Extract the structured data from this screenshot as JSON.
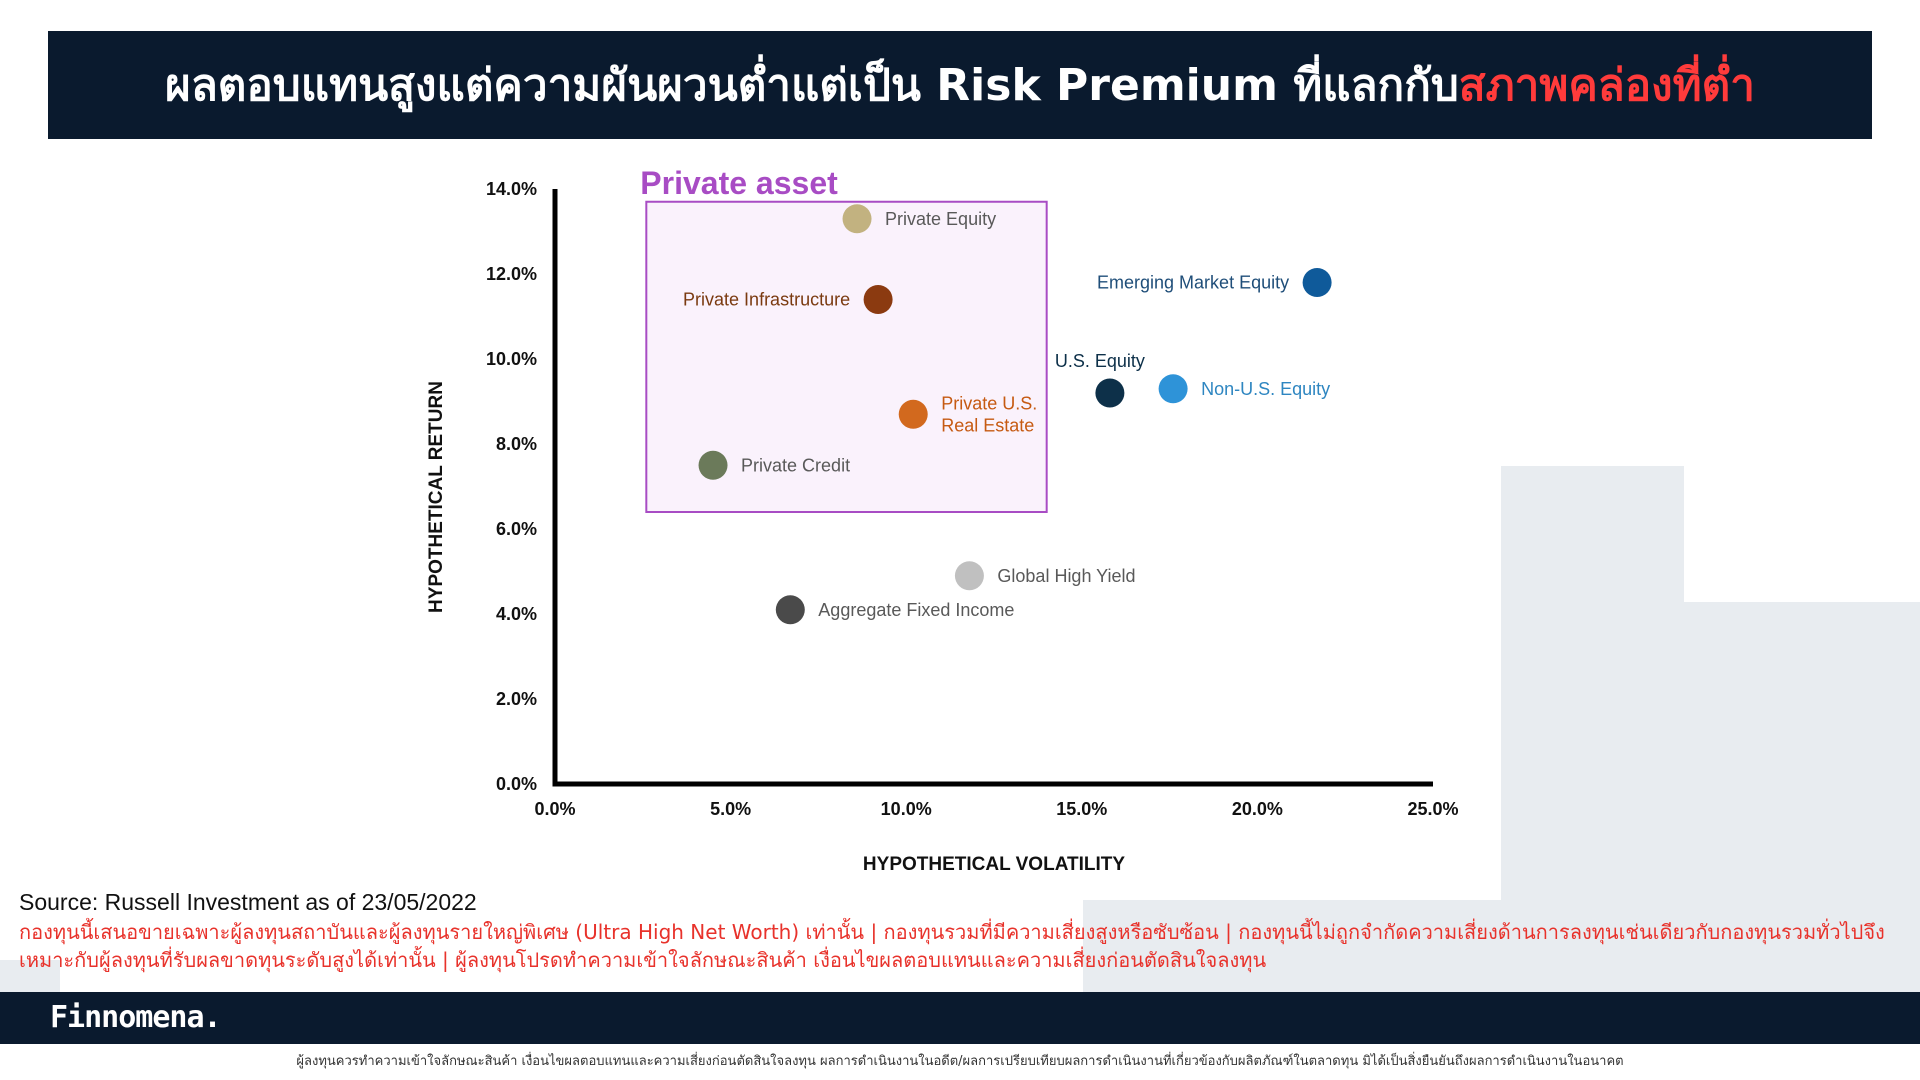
{
  "header": {
    "title_main": "ผลตอบแทนสูงแต่ความผันผวนต่ำแต่เป็น Risk Premium ที่แลกกับ",
    "title_highlight": "สภาพคล่องที่ต่ำ"
  },
  "chart_data": {
    "type": "scatter",
    "xlabel": "HYPOTHETICAL VOLATILITY",
    "ylabel": "HYPOTHETICAL RETURN",
    "xlim": [
      0,
      25
    ],
    "ylim": [
      0,
      14
    ],
    "x_ticks": [
      "0.0%",
      "5.0%",
      "10.0%",
      "15.0%",
      "20.0%",
      "25.0%"
    ],
    "y_ticks": [
      "0.0%",
      "2.0%",
      "4.0%",
      "6.0%",
      "8.0%",
      "10.0%",
      "12.0%",
      "14.0%"
    ],
    "grid": false,
    "group_box": {
      "label": "Private asset",
      "color": "#a84cc4",
      "x_range": [
        2.6,
        14.0
      ],
      "y_range": [
        6.4,
        13.7
      ]
    },
    "points": [
      {
        "name": "Private Equity",
        "x": 8.6,
        "y": 13.3,
        "color": "#c2b280",
        "label_lines": [
          "Private Equity"
        ],
        "label_color": "#595959",
        "label_pos": "right"
      },
      {
        "name": "Private Infrastructure",
        "x": 9.2,
        "y": 11.4,
        "color": "#8b3a10",
        "label_lines": [
          "Private Infrastructure"
        ],
        "label_color": "#7a3a10",
        "label_pos": "left"
      },
      {
        "name": "Private U.S. Real Estate",
        "x": 10.2,
        "y": 8.7,
        "color": "#d2691e",
        "label_lines": [
          "Private U.S.",
          "Real Estate"
        ],
        "label_color": "#c65a12",
        "label_pos": "right"
      },
      {
        "name": "Private Credit",
        "x": 4.5,
        "y": 7.5,
        "color": "#6b7a5a",
        "label_lines": [
          "Private Credit"
        ],
        "label_color": "#595959",
        "label_pos": "right"
      },
      {
        "name": "Emerging Market Equity",
        "x": 21.7,
        "y": 11.8,
        "color": "#0f5a9a",
        "label_lines": [
          "Emerging Market Equity"
        ],
        "label_color": "#1f4e79",
        "label_pos": "left"
      },
      {
        "name": "U.S. Equity",
        "x": 15.8,
        "y": 9.2,
        "color": "#0d3049",
        "label_lines": [
          "U.S. Equity"
        ],
        "label_color": "#0d3049",
        "label_pos": "above"
      },
      {
        "name": "Non-U.S. Equity",
        "x": 17.6,
        "y": 9.3,
        "color": "#2e93d8",
        "label_lines": [
          "Non-U.S. Equity"
        ],
        "label_color": "#2e86c1",
        "label_pos": "right"
      },
      {
        "name": "Global High Yield",
        "x": 11.8,
        "y": 4.9,
        "color": "#c0c0c0",
        "label_lines": [
          "Global High Yield"
        ],
        "label_color": "#595959",
        "label_pos": "right"
      },
      {
        "name": "Aggregate Fixed Income",
        "x": 6.7,
        "y": 4.1,
        "color": "#4a4a4a",
        "label_lines": [
          "Aggregate Fixed Income"
        ],
        "label_color": "#595959",
        "label_pos": "right"
      }
    ]
  },
  "source_text": "Source: Russell Investment as of 23/05/2022",
  "disclaimer_text": "กองทุนนี้เสนอขายเฉพาะผู้ลงทุนสถาบันและผู้ลงทุนรายใหญ่พิเศษ (Ultra High Net Worth) เท่านั้น | กองทุนรวมที่มีความเสี่ยงสูงหรือซับซ้อน | กองทุนนี้ไม่ถูกจำกัดความเสี่ยงด้านการลงทุนเช่นเดียวกับกองทุนรวมทั่วไปจึงเหมาะกับผู้ลงทุนที่รับผลขาดทุนระดับสูงได้เท่านั้น | ผู้ลงทุนโปรดทำความเข้าใจลักษณะสินค้า เงื่อนไขผลตอบแทนและความเสี่ยงก่อนตัดสินใจลงทุน",
  "footer": {
    "logo": "Finnomena.",
    "note": "ผู้ลงทุนควรทำความเข้าใจลักษณะสินค้า เงื่อนไขผลตอบแทนและความเสี่ยงก่อนตัดสินใจลงทุน ผลการดำเนินงานในอดีต/ผลการเปรียบเทียบผลการดำเนินงานที่เกี่ยวข้องกับผลิตภัณฑ์ในตลาดทุน มิได้เป็นสิ่งยืนยันถึงผลการดำเนินงานในอนาคต"
  },
  "colors": {
    "navy": "#0a1a2e",
    "highlight_red": "#ff3b3b",
    "disclaimer_red": "#e8322b",
    "bg_block": "#e8ecf0"
  }
}
